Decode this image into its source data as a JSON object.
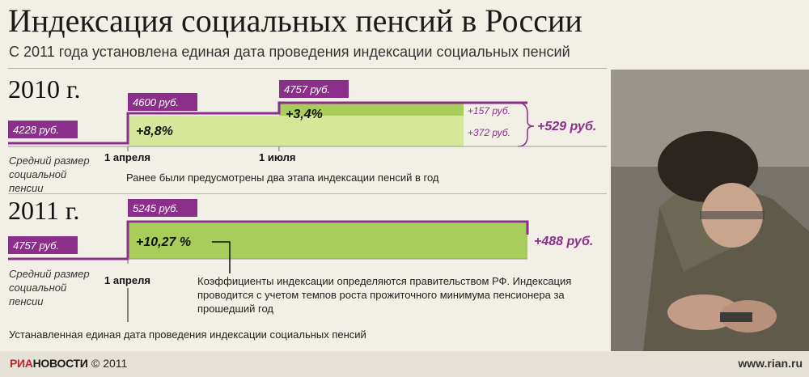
{
  "title": "Индексация социальных пенсий в России",
  "subtitle": "С 2011 года установлена единая дата проведения индексации социальных пенсий",
  "avg_label": [
    "Средний размер",
    "социальной",
    "пенсии"
  ],
  "chart_data": [
    {
      "type": "area",
      "year": "2010 г.",
      "start_value": 4228,
      "steps": [
        {
          "date": "1 апреля",
          "value": 4600,
          "increase_pct": "+8,8%"
        },
        {
          "date": "1 июля",
          "value": 4757,
          "increase_pct": "+3,4%"
        }
      ],
      "value_labels": [
        "4228 руб.",
        "4600 руб.",
        "4757 руб."
      ],
      "increments": [
        "+157 руб.",
        "+372 руб."
      ],
      "total_increase": "+529 руб.",
      "note": "Ранее были предусмотрены два этапа индексации пенсий в год"
    },
    {
      "type": "area",
      "year": "2011 г.",
      "start_value": 4757,
      "steps": [
        {
          "date": "1 апреля",
          "value": 5245,
          "increase_pct": "+10,27 %"
        }
      ],
      "value_labels": [
        "4757 руб.",
        "5245 руб."
      ],
      "total_increase": "+488 руб.",
      "note": "Коэффициенты индексации определяются правительством РФ. Индексация проводится с учетом темпов роста прожиточного минимума пенсионера за прошедший год"
    }
  ],
  "bottom_note": "Устанавленная единая дата проведения индексации социальных пенсий",
  "footer": {
    "logo_red": "РИА",
    "logo_black": "НОВОСТИ",
    "copyright": "© 2011",
    "site": "www.rian.ru"
  },
  "colors": {
    "purple": "#8b2f8a",
    "green_light": "#d6e79a",
    "green_dark": "#a9cd5b",
    "background": "#f2efe6"
  },
  "photo": "elderly-man-counting-coins"
}
